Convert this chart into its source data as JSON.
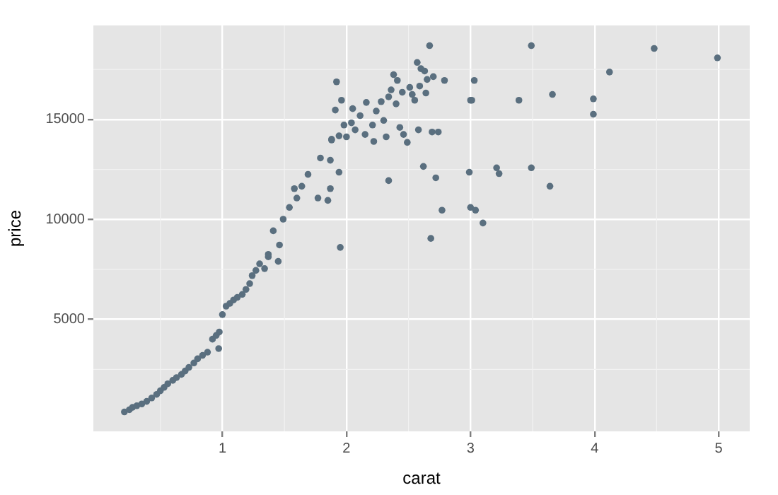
{
  "chart_data": {
    "type": "scatter",
    "xlabel": "carat",
    "ylabel": "price",
    "xlim": [
      -0.04,
      5.25
    ],
    "xticks": [
      1,
      2,
      3,
      4,
      5
    ],
    "ylim": [
      -600,
      19700
    ],
    "yticks": [
      5000,
      10000,
      15000
    ],
    "grid": true,
    "legend": false,
    "marker": "circle",
    "series": [
      {
        "color": "#5a6f7f",
        "x": [
          0.21,
          0.25,
          0.275,
          0.31,
          0.35,
          0.39,
          0.43,
          0.47,
          0.5,
          0.53,
          0.56,
          0.6,
          0.63,
          0.67,
          0.7,
          0.73,
          0.77,
          0.8,
          0.84,
          0.88,
          0.92,
          0.95,
          0.975,
          0.97,
          1.0,
          1.03,
          1.06,
          1.09,
          1.12,
          1.16,
          1.19,
          1.22,
          1.24,
          1.27,
          1.3,
          1.34,
          1.37,
          1.37,
          1.41,
          1.46,
          1.45,
          1.49,
          1.54,
          1.6,
          1.58,
          1.64,
          1.69,
          1.79,
          1.87,
          1.77,
          1.87,
          1.94,
          1.88,
          1.95,
          1.85,
          1.92,
          1.96,
          1.91,
          1.88,
          1.94,
          2.0,
          1.98,
          2.04,
          2.05,
          2.11,
          2.07,
          2.15,
          2.16,
          2.21,
          2.22,
          2.24,
          2.28,
          2.3,
          2.34,
          2.36,
          2.32,
          2.38,
          2.41,
          2.4,
          2.45,
          2.43,
          2.46,
          2.49,
          2.51,
          2.53,
          2.55,
          2.57,
          2.59,
          2.6,
          2.63,
          2.58,
          2.67,
          2.65,
          2.7,
          2.79,
          2.64,
          2.69,
          2.74,
          2.62,
          2.72,
          2.77,
          2.68,
          2.34,
          3.0,
          3.03,
          2.99,
          3.0,
          3.04,
          3.01,
          3.49,
          3.39,
          3.66,
          4.12,
          3.99,
          3.99,
          4.48,
          4.99,
          3.21,
          3.23,
          3.49,
          3.64,
          3.1
        ],
        "values": [
          370,
          480,
          600,
          680,
          770,
          900,
          1070,
          1250,
          1430,
          1600,
          1780,
          1950,
          2090,
          2250,
          2420,
          2600,
          2820,
          3030,
          3200,
          3360,
          4010,
          4200,
          4370,
          3540,
          5240,
          5660,
          5800,
          5970,
          6100,
          6250,
          6500,
          6790,
          7190,
          7450,
          7780,
          7540,
          8130,
          8250,
          9430,
          8720,
          7900,
          10010,
          10600,
          11070,
          11540,
          11660,
          12250,
          13070,
          12960,
          11070,
          11540,
          12360,
          14010,
          8600,
          10950,
          16880,
          15960,
          15470,
          13970,
          14180,
          14130,
          14720,
          14830,
          15540,
          15190,
          14480,
          14250,
          15850,
          14720,
          13900,
          15420,
          15890,
          14950,
          16130,
          16480,
          14130,
          17240,
          16950,
          15780,
          16360,
          14600,
          14250,
          13850,
          16600,
          16250,
          15960,
          17850,
          16670,
          17540,
          17420,
          14480,
          18690,
          17000,
          17140,
          16950,
          16320,
          14370,
          14370,
          12650,
          12080,
          10460,
          9050,
          11940,
          15960,
          16950,
          12360,
          10600,
          10460,
          15960,
          18690,
          15960,
          16250,
          17370,
          16030,
          15260,
          18550,
          18080,
          12580,
          12290,
          12580,
          11660,
          9820
        ]
      }
    ]
  }
}
